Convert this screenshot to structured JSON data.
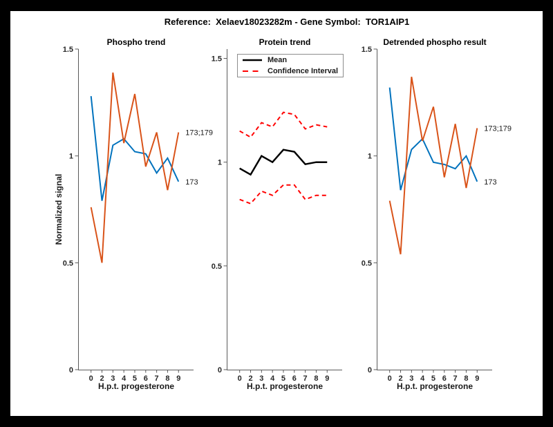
{
  "figure": {
    "title": "Reference:  Xelaev18023282m - Gene Symbol:  TOR1AIP1",
    "background": "#ffffff",
    "frame_color": "#000000"
  },
  "colors": {
    "series_blue": "#0072BD",
    "series_orange": "#D95319",
    "ci_red": "#FF0000",
    "mean_black": "#000000",
    "axis_line": "#595959",
    "tick_text": "#262626"
  },
  "legend": {
    "position": "top-left",
    "items": [
      {
        "label": "Mean",
        "style": "solid",
        "color": "#000000"
      },
      {
        "label": "Confidence Interval",
        "style": "dashed",
        "color": "#FF0000"
      }
    ]
  },
  "chart_data": [
    {
      "type": "line",
      "title": "Phospho trend",
      "xlabel": "H.p.t. progesterone",
      "ylabel": "Normalized signal",
      "x_tick_labels": [
        "0",
        "2",
        "3",
        "4",
        "5",
        "6",
        "7",
        "8",
        "9"
      ],
      "y_ticks": [
        0,
        0.5,
        1,
        1.5
      ],
      "y_tick_labels": [
        "0",
        "0.5",
        "1",
        "1.5"
      ],
      "ylim": [
        0,
        1.5
      ],
      "grid": false,
      "series": [
        {
          "name": "173",
          "color": "#0072BD",
          "style": "solid",
          "width": 2,
          "values": [
            1.28,
            0.79,
            1.05,
            1.08,
            1.02,
            1.01,
            0.92,
            0.99,
            0.88
          ],
          "end_label": "173"
        },
        {
          "name": "173;179",
          "color": "#D95319",
          "style": "solid",
          "width": 2,
          "values": [
            0.76,
            0.5,
            1.39,
            1.06,
            1.29,
            0.95,
            1.11,
            0.84,
            1.11
          ],
          "end_label": "173;179"
        }
      ]
    },
    {
      "type": "line",
      "title": "Protein trend",
      "xlabel": "H.p.t. progesterone",
      "ylabel": "",
      "x_tick_labels": [
        "0",
        "2",
        "3",
        "4",
        "5",
        "6",
        "7",
        "8",
        "9"
      ],
      "y_ticks": [
        0,
        0.5,
        1,
        1.5
      ],
      "y_tick_labels": [
        "0",
        "0.5",
        "1",
        "1.5"
      ],
      "ylim": [
        0,
        1.545
      ],
      "grid": false,
      "legend_entries": [
        "Mean",
        "Confidence Interval"
      ],
      "series": [
        {
          "name": "Mean",
          "color": "#000000",
          "style": "solid",
          "width": 2.5,
          "values": [
            0.97,
            0.94,
            1.03,
            1.0,
            1.06,
            1.05,
            0.99,
            1.0,
            1.0
          ],
          "end_label": ""
        },
        {
          "name": "Confidence Interval upper",
          "color": "#FF0000",
          "style": "dashed",
          "width": 2,
          "values": [
            1.15,
            1.12,
            1.19,
            1.17,
            1.24,
            1.23,
            1.16,
            1.18,
            1.17
          ],
          "end_label": ""
        },
        {
          "name": "Confidence Interval lower",
          "color": "#FF0000",
          "style": "dashed",
          "width": 2,
          "values": [
            0.82,
            0.8,
            0.86,
            0.84,
            0.89,
            0.89,
            0.82,
            0.84,
            0.84
          ],
          "end_label": ""
        }
      ]
    },
    {
      "type": "line",
      "title": "Detrended phospho result",
      "xlabel": "H.p.t. progesterone",
      "ylabel": "",
      "x_tick_labels": [
        "0",
        "2",
        "3",
        "4",
        "5",
        "6",
        "7",
        "8",
        "9"
      ],
      "y_ticks": [
        0,
        0.5,
        1,
        1.5
      ],
      "y_tick_labels": [
        "0",
        "0.5",
        "1",
        "1.5"
      ],
      "ylim": [
        0,
        1.5
      ],
      "grid": false,
      "series": [
        {
          "name": "173",
          "color": "#0072BD",
          "style": "solid",
          "width": 2,
          "values": [
            1.32,
            0.84,
            1.03,
            1.08,
            0.97,
            0.96,
            0.94,
            1.0,
            0.88
          ],
          "end_label": "173"
        },
        {
          "name": "173;179",
          "color": "#D95319",
          "style": "solid",
          "width": 2,
          "values": [
            0.79,
            0.54,
            1.37,
            1.07,
            1.23,
            0.9,
            1.15,
            0.85,
            1.13
          ],
          "end_label": "173;179"
        }
      ]
    }
  ]
}
